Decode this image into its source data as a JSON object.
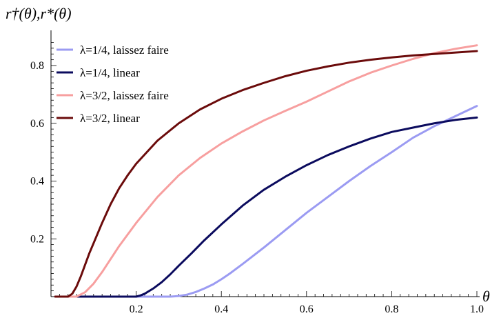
{
  "chart_data": {
    "type": "line",
    "title": "",
    "xlabel": "θ",
    "ylabel": "r†(θ),r*(θ)",
    "xlim": [
      0,
      1.0
    ],
    "ylim": [
      0,
      0.9
    ],
    "x_ticks": [
      0.2,
      0.4,
      0.6,
      0.8,
      1.0
    ],
    "x_tick_labels": [
      "0.2",
      "0.4",
      "0.6",
      "0.8",
      "1.0"
    ],
    "y_ticks": [
      0.2,
      0.4,
      0.6,
      0.8
    ],
    "y_tick_labels": [
      "0.2",
      "0.4",
      "0.6",
      "0.8"
    ],
    "grid": false,
    "legend_position": "top-left",
    "series": [
      {
        "name": "λ=1/4, laissez faire",
        "color": "#9b9bf2",
        "x": [
          0.01,
          0.28,
          0.3,
          0.32,
          0.34,
          0.36,
          0.38,
          0.4,
          0.42,
          0.45,
          0.5,
          0.55,
          0.6,
          0.65,
          0.7,
          0.75,
          0.8,
          0.85,
          0.9,
          0.95,
          1.0
        ],
        "y": [
          0.0,
          0.0,
          0.002,
          0.007,
          0.016,
          0.028,
          0.042,
          0.06,
          0.08,
          0.113,
          0.17,
          0.23,
          0.29,
          0.345,
          0.4,
          0.452,
          0.5,
          0.55,
          0.59,
          0.625,
          0.66
        ]
      },
      {
        "name": "λ=1/4, linear",
        "color": "#0b0b5e",
        "x": [
          0.01,
          0.2,
          0.21,
          0.22,
          0.24,
          0.26,
          0.28,
          0.3,
          0.33,
          0.36,
          0.4,
          0.45,
          0.5,
          0.55,
          0.6,
          0.65,
          0.7,
          0.75,
          0.8,
          0.85,
          0.9,
          0.95,
          1.0
        ],
        "y": [
          0.0,
          0.0,
          0.004,
          0.01,
          0.028,
          0.05,
          0.077,
          0.107,
          0.15,
          0.195,
          0.25,
          0.315,
          0.37,
          0.415,
          0.455,
          0.49,
          0.52,
          0.547,
          0.57,
          0.585,
          0.6,
          0.612,
          0.62
        ]
      },
      {
        "name": "λ=3/2, laissez faire",
        "color": "#f79f9f",
        "x": [
          0.01,
          0.06,
          0.08,
          0.1,
          0.12,
          0.14,
          0.16,
          0.18,
          0.2,
          0.25,
          0.3,
          0.35,
          0.4,
          0.45,
          0.5,
          0.55,
          0.6,
          0.65,
          0.7,
          0.75,
          0.8,
          0.85,
          0.9,
          0.95,
          1.0
        ],
        "y": [
          0.0,
          0.0,
          0.015,
          0.045,
          0.085,
          0.13,
          0.175,
          0.215,
          0.255,
          0.345,
          0.42,
          0.48,
          0.53,
          0.572,
          0.61,
          0.643,
          0.675,
          0.71,
          0.745,
          0.775,
          0.8,
          0.823,
          0.843,
          0.858,
          0.87
        ]
      },
      {
        "name": "λ=3/2, linear",
        "color": "#6b0b0b",
        "x": [
          0.01,
          0.04,
          0.05,
          0.06,
          0.07,
          0.08,
          0.09,
          0.1,
          0.12,
          0.14,
          0.16,
          0.18,
          0.2,
          0.25,
          0.3,
          0.35,
          0.4,
          0.45,
          0.5,
          0.55,
          0.6,
          0.65,
          0.7,
          0.75,
          0.8,
          0.85,
          0.9,
          0.95,
          1.0
        ],
        "y": [
          0.0,
          0.0,
          0.01,
          0.035,
          0.07,
          0.11,
          0.15,
          0.185,
          0.255,
          0.32,
          0.375,
          0.42,
          0.46,
          0.54,
          0.6,
          0.648,
          0.685,
          0.715,
          0.74,
          0.763,
          0.782,
          0.797,
          0.81,
          0.82,
          0.828,
          0.835,
          0.84,
          0.845,
          0.85
        ]
      }
    ]
  }
}
